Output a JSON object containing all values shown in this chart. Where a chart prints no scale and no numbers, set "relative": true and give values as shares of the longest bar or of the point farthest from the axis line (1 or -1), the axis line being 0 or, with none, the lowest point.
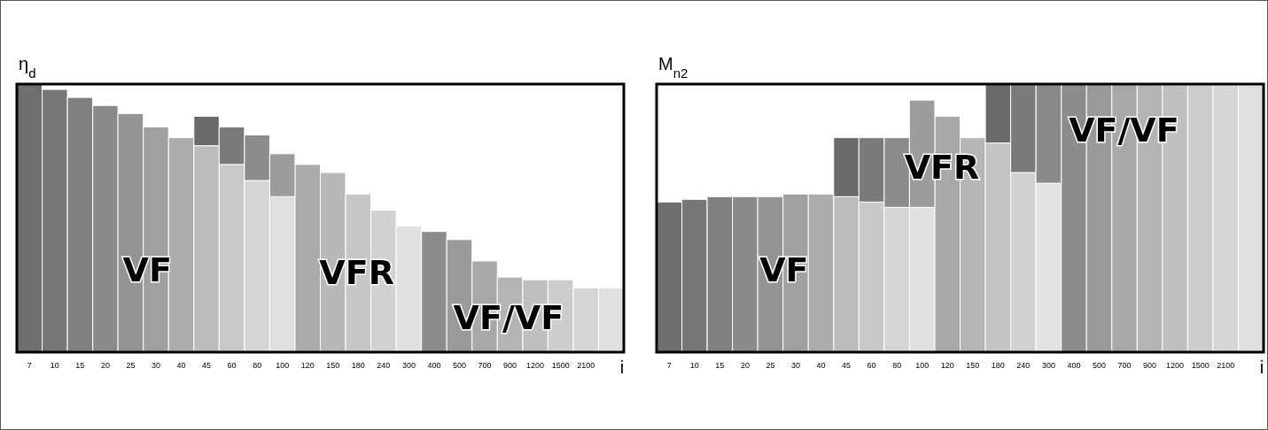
{
  "chart_data": [
    {
      "type": "bar",
      "relative": true,
      "stacked": true,
      "ylabel": "η$_{d}$",
      "xlabel": "i",
      "categories": [
        "7",
        "10",
        "15",
        "20",
        "25",
        "30",
        "40",
        "45",
        "60",
        "80",
        "100",
        "120",
        "150",
        "180",
        "240",
        "300",
        "400",
        "500",
        "700",
        "900",
        "1200",
        "1500",
        "2100",
        null
      ],
      "series": [
        {
          "values": [
            1.0,
            0.98,
            0.95,
            0.92,
            0.89,
            0.84,
            0.8,
            0.77,
            0.7,
            0.64,
            0.58,
            0.7,
            0.67,
            0.59,
            0.53,
            0.47,
            0.45,
            0.42,
            0.34,
            0.28,
            0.27,
            0.27,
            0.24,
            0.24
          ],
          "colors": [
            "#6e6e6e",
            "#777777",
            "#808080",
            "#8a8a8a",
            "#939393",
            "#a0a0a0",
            "#acacac",
            "#bcbcbc",
            "#c8c8c8",
            "#d4d4d4",
            "#e0e0e0",
            "#aaaaaa",
            "#b8b8b8",
            "#c6c6c6",
            "#d2d2d2",
            "#e0e0e0",
            "#8c8c8c",
            "#9a9a9a",
            "#a8a8a8",
            "#b4b4b4",
            "#c0c0c0",
            "#cccccc",
            "#d6d6d6",
            "#e0e0e0"
          ]
        },
        {
          "values": [
            null,
            null,
            null,
            null,
            null,
            null,
            null,
            0.11,
            0.14,
            0.17,
            0.16,
            null,
            null,
            null,
            null,
            null,
            null,
            null,
            null,
            null,
            null,
            null,
            null,
            null
          ],
          "colors": [
            null,
            null,
            null,
            null,
            null,
            null,
            null,
            "#6a6a6a",
            "#7a7a7a",
            "#8c8c8c",
            "#9c9c9c",
            null,
            null,
            null,
            null,
            null,
            null,
            null,
            null,
            null,
            null,
            null,
            null,
            null
          ]
        }
      ],
      "annotations": [
        "VF",
        "VFR",
        "VF/VF"
      ]
    },
    {
      "type": "bar",
      "relative": true,
      "stacked": true,
      "ylabel": "M$_{n2}$",
      "xlabel": "i",
      "categories": [
        "7",
        "10",
        "15",
        "20",
        "25",
        "30",
        "40",
        "45",
        "60",
        "80",
        "100",
        "120",
        "150",
        "180",
        "240",
        "300",
        "400",
        "500",
        "700",
        "900",
        "1200",
        "1500",
        "2100",
        null
      ],
      "series": [
        {
          "values": [
            0.56,
            0.57,
            0.58,
            0.58,
            0.58,
            0.59,
            0.59,
            0.58,
            0.56,
            0.54,
            0.54,
            0.88,
            0.8,
            0.78,
            0.67,
            0.63,
            1.0,
            1.0,
            1.0,
            1.0,
            1.0,
            1.0,
            1.0,
            1.0
          ],
          "colors": [
            "#6e6e6e",
            "#777777",
            "#808080",
            "#8a8a8a",
            "#939393",
            "#a0a0a0",
            "#acacac",
            "#bcbcbc",
            "#c8c8c8",
            "#d4d4d4",
            "#e0e0e0",
            "#a8a8a8",
            "#b6b6b6",
            "#c4c4c4",
            "#d2d2d2",
            "#e2e2e2",
            "#8c8c8c",
            "#9a9a9a",
            "#a8a8a8",
            "#b4b4b4",
            "#c0c0c0",
            "#cccccc",
            "#d6d6d6",
            "#e0e0e0"
          ]
        },
        {
          "values": [
            null,
            null,
            null,
            null,
            null,
            null,
            null,
            0.22,
            0.24,
            0.26,
            0.4,
            null,
            null,
            0.22,
            0.33,
            0.37,
            null,
            null,
            null,
            null,
            null,
            null,
            null,
            null
          ],
          "colors": [
            null,
            null,
            null,
            null,
            null,
            null,
            null,
            "#6a6a6a",
            "#7a7a7a",
            "#8c8c8c",
            "#9c9c9c",
            null,
            null,
            "#6a6a6a",
            "#7a7a7a",
            "#8a8a8a",
            null,
            null,
            null,
            null,
            null,
            null,
            null,
            null
          ]
        }
      ],
      "annotations": [
        "VF",
        "VFR",
        "VF/VF"
      ]
    }
  ]
}
